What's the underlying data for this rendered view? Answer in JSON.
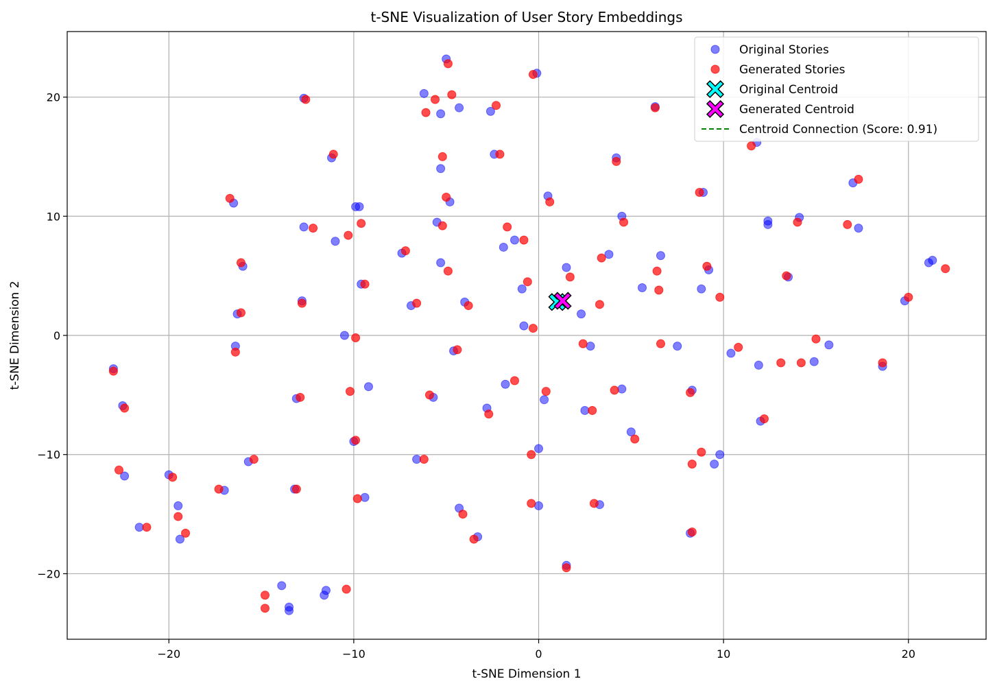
{
  "chart_data": {
    "type": "scatter",
    "title": "t-SNE Visualization of User Story Embeddings",
    "xlabel": "t-SNE Dimension 1",
    "ylabel": "t-SNE Dimension 2",
    "xlim": [
      -25.5,
      24.2
    ],
    "ylim": [
      -25.5,
      25.5
    ],
    "xticks": [
      -20,
      -10,
      0,
      10,
      20
    ],
    "yticks": [
      -20,
      -10,
      0,
      10,
      20
    ],
    "xtick_labels": [
      "−20",
      "−10",
      "0",
      "10",
      "20"
    ],
    "ytick_labels": [
      "−20",
      "−10",
      "0",
      "10",
      "20"
    ],
    "grid": true,
    "legend_position": "top-right",
    "series": [
      {
        "name": "Original Stories",
        "color": "#0000ff",
        "marker": "circle",
        "points": [
          [
            -23.0,
            -2.8
          ],
          [
            -22.5,
            -5.9
          ],
          [
            -22.4,
            -11.8
          ],
          [
            -21.6,
            -16.1
          ],
          [
            -20.0,
            -11.7
          ],
          [
            -19.5,
            -14.3
          ],
          [
            -19.4,
            -17.1
          ],
          [
            -17.0,
            -13.0
          ],
          [
            -16.5,
            11.1
          ],
          [
            -16.4,
            -0.9
          ],
          [
            -16.3,
            1.8
          ],
          [
            -16.0,
            5.8
          ],
          [
            -15.7,
            -10.6
          ],
          [
            -13.9,
            -21.0
          ],
          [
            -13.5,
            -22.8
          ],
          [
            -13.5,
            -23.1
          ],
          [
            -13.2,
            -12.9
          ],
          [
            -13.1,
            -5.3
          ],
          [
            -12.8,
            2.9
          ],
          [
            -12.7,
            9.1
          ],
          [
            -12.7,
            19.9
          ],
          [
            -11.5,
            -21.4
          ],
          [
            -11.6,
            -21.8
          ],
          [
            -11.2,
            14.9
          ],
          [
            -11.0,
            7.9
          ],
          [
            -10.5,
            0.0
          ],
          [
            -10.0,
            -8.9
          ],
          [
            -9.9,
            10.8
          ],
          [
            -9.7,
            10.8
          ],
          [
            -9.6,
            4.3
          ],
          [
            -9.4,
            -13.6
          ],
          [
            -9.2,
            -4.3
          ],
          [
            -7.4,
            6.9
          ],
          [
            -6.9,
            2.5
          ],
          [
            -6.6,
            -10.4
          ],
          [
            -6.2,
            20.3
          ],
          [
            -5.7,
            -5.2
          ],
          [
            -5.5,
            9.5
          ],
          [
            -5.3,
            6.1
          ],
          [
            -5.3,
            14.0
          ],
          [
            -5.3,
            18.6
          ],
          [
            -5.0,
            23.2
          ],
          [
            -4.8,
            11.2
          ],
          [
            -4.6,
            -1.3
          ],
          [
            -4.3,
            19.1
          ],
          [
            -4.3,
            -14.5
          ],
          [
            -4.0,
            2.8
          ],
          [
            -3.3,
            -16.9
          ],
          [
            -2.8,
            -6.1
          ],
          [
            -2.6,
            18.8
          ],
          [
            -2.4,
            15.2
          ],
          [
            -1.8,
            -4.1
          ],
          [
            -1.9,
            7.4
          ],
          [
            -1.3,
            8.0
          ],
          [
            -0.9,
            3.9
          ],
          [
            -0.8,
            0.8
          ],
          [
            -0.1,
            22.0
          ],
          [
            0.0,
            -9.5
          ],
          [
            0.0,
            -14.3
          ],
          [
            0.3,
            -5.4
          ],
          [
            0.5,
            11.7
          ],
          [
            1.5,
            5.7
          ],
          [
            1.5,
            -19.3
          ],
          [
            2.3,
            1.8
          ],
          [
            2.5,
            -6.3
          ],
          [
            2.8,
            -0.9
          ],
          [
            3.3,
            -14.2
          ],
          [
            3.8,
            6.8
          ],
          [
            4.2,
            14.9
          ],
          [
            4.5,
            10.0
          ],
          [
            4.5,
            -4.5
          ],
          [
            5.0,
            -8.1
          ],
          [
            5.6,
            4.0
          ],
          [
            6.3,
            19.2
          ],
          [
            6.6,
            6.7
          ],
          [
            7.5,
            -0.9
          ],
          [
            8.2,
            -16.6
          ],
          [
            8.3,
            -4.6
          ],
          [
            8.8,
            3.9
          ],
          [
            8.9,
            12.0
          ],
          [
            9.2,
            5.5
          ],
          [
            9.5,
            -10.8
          ],
          [
            9.8,
            -10.0
          ],
          [
            10.4,
            -1.5
          ],
          [
            11.8,
            16.2
          ],
          [
            11.9,
            -2.5
          ],
          [
            12.0,
            -7.2
          ],
          [
            12.4,
            9.3
          ],
          [
            12.4,
            9.6
          ],
          [
            13.5,
            4.9
          ],
          [
            14.1,
            9.9
          ],
          [
            14.9,
            -2.2
          ],
          [
            15.7,
            -0.8
          ],
          [
            17.0,
            12.8
          ],
          [
            17.3,
            9.0
          ],
          [
            18.6,
            -2.6
          ],
          [
            19.8,
            2.9
          ],
          [
            21.1,
            6.1
          ],
          [
            21.3,
            6.3
          ]
        ]
      },
      {
        "name": "Generated Stories",
        "color": "#ff0000",
        "marker": "circle",
        "points": [
          [
            -23.0,
            -3.0
          ],
          [
            -22.4,
            -6.1
          ],
          [
            -22.7,
            -11.3
          ],
          [
            -21.2,
            -16.1
          ],
          [
            -19.8,
            -11.9
          ],
          [
            -19.5,
            -15.2
          ],
          [
            -19.1,
            -16.6
          ],
          [
            -17.3,
            -12.9
          ],
          [
            -16.7,
            11.5
          ],
          [
            -16.4,
            -1.4
          ],
          [
            -16.1,
            6.1
          ],
          [
            -16.1,
            1.9
          ],
          [
            -15.4,
            -10.4
          ],
          [
            -14.8,
            -21.8
          ],
          [
            -14.8,
            -22.9
          ],
          [
            -13.1,
            -12.9
          ],
          [
            -12.9,
            -5.2
          ],
          [
            -12.8,
            2.7
          ],
          [
            -12.6,
            19.8
          ],
          [
            -12.2,
            9.0
          ],
          [
            -11.1,
            15.2
          ],
          [
            -10.4,
            -21.3
          ],
          [
            -10.3,
            8.4
          ],
          [
            -10.2,
            -4.7
          ],
          [
            -9.9,
            -8.8
          ],
          [
            -9.9,
            -0.2
          ],
          [
            -9.8,
            -13.7
          ],
          [
            -9.6,
            9.4
          ],
          [
            -9.4,
            4.3
          ],
          [
            -7.2,
            7.1
          ],
          [
            -6.6,
            2.7
          ],
          [
            -6.2,
            -10.4
          ],
          [
            -6.1,
            18.7
          ],
          [
            -5.9,
            -5.0
          ],
          [
            -5.6,
            19.8
          ],
          [
            -5.2,
            15.0
          ],
          [
            -5.2,
            9.2
          ],
          [
            -5.0,
            11.6
          ],
          [
            -4.9,
            5.4
          ],
          [
            -4.9,
            22.8
          ],
          [
            -4.7,
            20.2
          ],
          [
            -4.4,
            -1.2
          ],
          [
            -4.1,
            -15.0
          ],
          [
            -3.8,
            2.5
          ],
          [
            -3.5,
            -17.1
          ],
          [
            -2.7,
            -6.6
          ],
          [
            -2.3,
            19.3
          ],
          [
            -2.1,
            15.2
          ],
          [
            -1.7,
            9.1
          ],
          [
            -1.3,
            -3.8
          ],
          [
            -0.8,
            8.0
          ],
          [
            -0.6,
            4.5
          ],
          [
            -0.3,
            0.6
          ],
          [
            -0.3,
            21.9
          ],
          [
            -0.4,
            -10.0
          ],
          [
            -0.4,
            -14.1
          ],
          [
            0.4,
            -4.7
          ],
          [
            0.6,
            11.2
          ],
          [
            1.7,
            4.9
          ],
          [
            1.5,
            -19.5
          ],
          [
            2.4,
            -0.7
          ],
          [
            2.9,
            -6.3
          ],
          [
            3.0,
            -14.1
          ],
          [
            3.4,
            6.5
          ],
          [
            3.3,
            2.6
          ],
          [
            4.1,
            -4.6
          ],
          [
            4.2,
            14.6
          ],
          [
            4.6,
            9.5
          ],
          [
            5.2,
            -8.7
          ],
          [
            6.3,
            19.1
          ],
          [
            6.4,
            5.4
          ],
          [
            6.5,
            3.8
          ],
          [
            6.6,
            -0.7
          ],
          [
            8.2,
            -4.8
          ],
          [
            8.3,
            -10.8
          ],
          [
            8.3,
            -16.5
          ],
          [
            8.7,
            12.0
          ],
          [
            8.8,
            -9.8
          ],
          [
            9.1,
            5.8
          ],
          [
            9.8,
            3.2
          ],
          [
            10.8,
            -1.0
          ],
          [
            11.5,
            15.9
          ],
          [
            12.2,
            -7.0
          ],
          [
            13.1,
            -2.3
          ],
          [
            13.4,
            5.0
          ],
          [
            14.0,
            9.5
          ],
          [
            14.2,
            -2.3
          ],
          [
            15.0,
            -0.3
          ],
          [
            16.7,
            9.3
          ],
          [
            17.3,
            13.1
          ],
          [
            18.6,
            -2.3
          ],
          [
            20.0,
            3.2
          ],
          [
            22.0,
            5.6
          ]
        ]
      }
    ],
    "centroids": [
      {
        "name": "Original Centroid",
        "x": 1.0,
        "y": 2.8,
        "color": "#00ffff",
        "marker": "X"
      },
      {
        "name": "Generated Centroid",
        "x": 1.3,
        "y": 2.9,
        "color": "#ff00ff",
        "marker": "X"
      }
    ],
    "connection": {
      "name": "Centroid Connection (Score: 0.91)",
      "color": "#008000",
      "style": "dashed"
    }
  }
}
